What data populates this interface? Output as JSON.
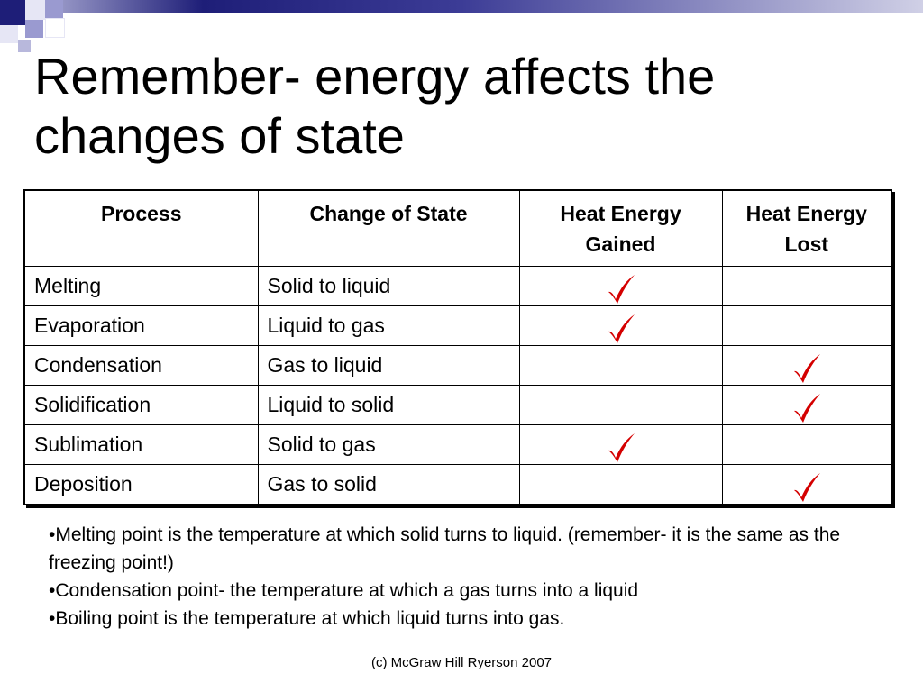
{
  "slide": {
    "title": "Remember- energy affects the changes of state",
    "accent_colors": {
      "navy": "#1e1e78",
      "periwinkle": "#9a9ad0",
      "check_red": "#d40000"
    }
  },
  "table": {
    "headers": [
      "Process",
      "Change of State",
      "Heat Energy Gained",
      "Heat Energy Lost"
    ],
    "rows": [
      {
        "process": "Melting",
        "change": "Solid to liquid",
        "gained": true,
        "lost": false
      },
      {
        "process": "Evaporation",
        "change": "Liquid to gas",
        "gained": true,
        "lost": false
      },
      {
        "process": "Condensation",
        "change": "Gas to liquid",
        "gained": false,
        "lost": true
      },
      {
        "process": "Solidification",
        "change": "Liquid to solid",
        "gained": false,
        "lost": true
      },
      {
        "process": "Sublimation",
        "change": "Solid to gas",
        "gained": true,
        "lost": false
      },
      {
        "process": "Deposition",
        "change": "Gas to solid",
        "gained": false,
        "lost": true
      }
    ],
    "check_icon": "checkmark-icon"
  },
  "notes": [
    "•Melting point is the temperature at which solid turns to liquid. (remember- it is the same as the freezing point!)",
    "•Condensation point- the temperature at which a gas turns into a liquid",
    "•Boiling point is the temperature at which liquid turns into gas."
  ],
  "footer": "(c) McGraw Hill Ryerson 2007"
}
